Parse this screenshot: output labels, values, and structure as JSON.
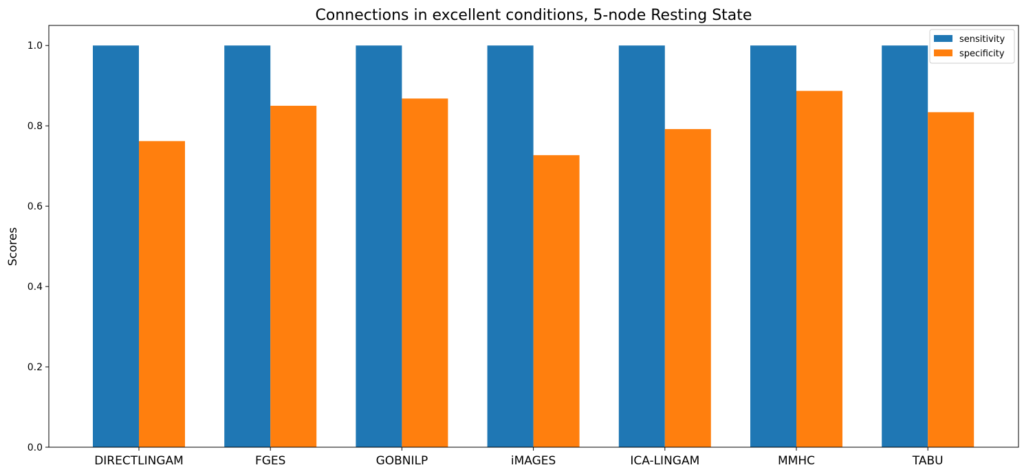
{
  "chart_data": {
    "type": "bar",
    "title": "Connections in excellent conditions, 5-node Resting State",
    "xlabel": "",
    "ylabel": "Scores",
    "ylim": [
      0,
      1.05
    ],
    "yticks": [
      0.0,
      0.2,
      0.4,
      0.6,
      0.8,
      1.0
    ],
    "ytick_labels": [
      "0.0",
      "0.2",
      "0.4",
      "0.6",
      "0.8",
      "1.0"
    ],
    "categories": [
      "DIRECTLINGAM",
      "FGES",
      "GOBNILP",
      "iMAGES",
      "ICA-LINGAM",
      "MMHC",
      "TABU"
    ],
    "series": [
      {
        "name": "sensitivity",
        "color": "#1f77b4",
        "values": [
          1.0,
          1.0,
          1.0,
          1.0,
          1.0,
          1.0,
          1.0
        ]
      },
      {
        "name": "specificity",
        "color": "#ff7f0e",
        "values": [
          0.762,
          0.85,
          0.868,
          0.727,
          0.792,
          0.887,
          0.834
        ]
      }
    ],
    "grid": false,
    "legend_position": "top-right"
  }
}
